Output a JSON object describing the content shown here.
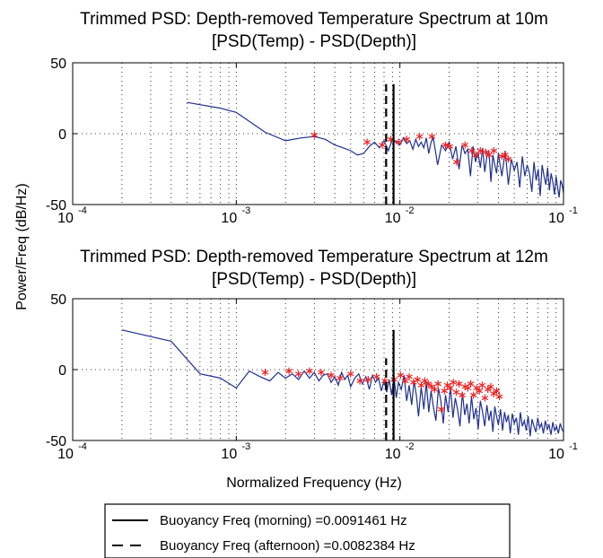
{
  "chart_data": [
    {
      "type": "line",
      "title": "Trimmed PSD: Depth-removed Temperature Spectrum at 10m",
      "subtitle": "[PSD(Temp) - PSD(Depth)]",
      "xscale": "log",
      "xlim": [
        0.0001,
        0.1
      ],
      "ylim": [
        -50,
        50
      ],
      "xticks": [
        "10",
        "10",
        "10",
        "10"
      ],
      "xtick_exponents": [
        "-4",
        "-3",
        "-2",
        "-1"
      ],
      "yticks": [
        "50",
        "0",
        "-50"
      ],
      "grid": true,
      "series": [
        {
          "color": "#1f2f8f",
          "x": [
            0.0005,
            0.0008,
            0.001,
            0.0015,
            0.002,
            0.0025,
            0.003,
            0.0035,
            0.004,
            0.0045,
            0.005,
            0.0055,
            0.006,
            0.0065,
            0.007,
            0.0075,
            0.008,
            0.0085,
            0.009,
            0.0095,
            0.01,
            0.0105,
            0.011,
            0.0115,
            0.012,
            0.0125,
            0.013,
            0.0135,
            0.014,
            0.0145,
            0.015,
            0.0155,
            0.016,
            0.017,
            0.018,
            0.019,
            0.02,
            0.021,
            0.022,
            0.023,
            0.024,
            0.025,
            0.026,
            0.027,
            0.028,
            0.029,
            0.03,
            0.031,
            0.032,
            0.033,
            0.034,
            0.035,
            0.036,
            0.037,
            0.038,
            0.039,
            0.04,
            0.042,
            0.044,
            0.046,
            0.048,
            0.05,
            0.052,
            0.054,
            0.056,
            0.058,
            0.06,
            0.062,
            0.064,
            0.066,
            0.068,
            0.07,
            0.072,
            0.074,
            0.076,
            0.078,
            0.08,
            0.082,
            0.084,
            0.086,
            0.088,
            0.09,
            0.092,
            0.094,
            0.096,
            0.098,
            0.1
          ],
          "y": [
            22,
            18,
            15,
            1,
            -5,
            -3,
            -2,
            -4,
            -8,
            -10,
            -12,
            -15,
            -14,
            -9,
            -6,
            -10,
            -5,
            -12,
            -4,
            -6,
            -8,
            -3,
            -7,
            -5,
            -11,
            -4,
            -9,
            -6,
            -10,
            -3,
            -14,
            -6,
            -3,
            -22,
            -8,
            -12,
            -6,
            -18,
            -9,
            -25,
            -8,
            -14,
            -11,
            -30,
            -9,
            -20,
            -13,
            -24,
            -10,
            -27,
            -16,
            -12,
            -34,
            -15,
            -22,
            -28,
            -14,
            -30,
            -12,
            -36,
            -18,
            -26,
            -20,
            -38,
            -16,
            -30,
            -22,
            -28,
            -41,
            -20,
            -33,
            -25,
            -44,
            -22,
            -30,
            -36,
            -24,
            -40,
            -28,
            -34,
            -43,
            -30,
            -38,
            -45,
            -33,
            -36,
            -42
          ]
        }
      ],
      "markers": {
        "color": "#ee2222",
        "x": [
          0.003,
          0.0063,
          0.0078,
          0.0088,
          0.0098,
          0.011,
          0.0132,
          0.0157,
          0.019,
          0.0202,
          0.0222,
          0.025,
          0.0275,
          0.0292,
          0.031,
          0.0335,
          0.035,
          0.0375,
          0.042,
          0.044,
          0.046
        ],
        "y": [
          -1,
          -6,
          -8,
          -4,
          -6,
          -4,
          -2,
          -2,
          -8,
          -9,
          -20,
          -8,
          -12,
          -15,
          -12,
          -13,
          -15,
          -12,
          -16,
          -15,
          -18
        ]
      },
      "vlines": [
        {
          "name": "Buoyancy Freq (morning) =0.0091461 Hz",
          "x": 0.0091461,
          "style": "solid",
          "ymax": 35
        },
        {
          "name": "Buoyancy Freq (afternoon) =0.0082384 Hz",
          "x": 0.0082384,
          "style": "dashed",
          "ymax": 35
        }
      ]
    },
    {
      "type": "line",
      "title": "Trimmed PSD: Depth-removed Temperature Spectrum at 12m",
      "subtitle": "[PSD(Temp) - PSD(Depth)]",
      "xlabel": "Normalized Frequency (Hz)",
      "xscale": "log",
      "xlim": [
        0.0001,
        0.1
      ],
      "ylim": [
        -50,
        50
      ],
      "xticks": [
        "10",
        "10",
        "10",
        "10"
      ],
      "xtick_exponents": [
        "-4",
        "-3",
        "-2",
        "-1"
      ],
      "yticks": [
        "50",
        "0",
        "-50"
      ],
      "grid": true,
      "series": [
        {
          "color": "#1f2f8f",
          "x": [
            0.0002,
            0.0004,
            0.0006,
            0.0008,
            0.001,
            0.0012,
            0.0014,
            0.0016,
            0.0018,
            0.002,
            0.0022,
            0.0024,
            0.0026,
            0.0028,
            0.003,
            0.0032,
            0.0034,
            0.0036,
            0.0038,
            0.004,
            0.0042,
            0.0044,
            0.0046,
            0.0048,
            0.005,
            0.0053,
            0.0056,
            0.0059,
            0.0062,
            0.0065,
            0.0068,
            0.0071,
            0.0074,
            0.0077,
            0.008,
            0.0083,
            0.0086,
            0.0089,
            0.0092,
            0.0095,
            0.0098,
            0.0102,
            0.0106,
            0.011,
            0.0114,
            0.0118,
            0.0122,
            0.0126,
            0.013,
            0.0135,
            0.014,
            0.0145,
            0.015,
            0.0155,
            0.016,
            0.0166,
            0.0172,
            0.0178,
            0.0184,
            0.019,
            0.0197,
            0.0204,
            0.0211,
            0.0218,
            0.0225,
            0.0233,
            0.0241,
            0.0249,
            0.0257,
            0.0265,
            0.0274,
            0.0283,
            0.0292,
            0.0301,
            0.031,
            0.032,
            0.033,
            0.034,
            0.035,
            0.036,
            0.037,
            0.038,
            0.039,
            0.04,
            0.0412,
            0.0424,
            0.0436,
            0.0448,
            0.046,
            0.0473,
            0.0486,
            0.05,
            0.0515,
            0.053,
            0.0545,
            0.056,
            0.0576,
            0.0592,
            0.0608,
            0.0625,
            0.0642,
            0.066,
            0.0678,
            0.0696,
            0.0715,
            0.0734,
            0.0754,
            0.0774,
            0.0795,
            0.0816,
            0.0838,
            0.086,
            0.0883,
            0.0906,
            0.093,
            0.0954,
            0.0978,
            0.1
          ],
          "y": [
            28,
            20,
            -3,
            -6,
            -13,
            -1,
            -5,
            -8,
            -2,
            -6,
            -3,
            -7,
            -1,
            -6,
            -2,
            -8,
            -4,
            -3,
            -9,
            -5,
            -11,
            -2,
            -7,
            -4,
            -12,
            -6,
            -3,
            -10,
            -5,
            -14,
            -4,
            -9,
            -6,
            -15,
            -8,
            -16,
            -7,
            -18,
            -5,
            -20,
            -9,
            -14,
            -4,
            -22,
            -11,
            -25,
            -8,
            -18,
            -33,
            -12,
            -28,
            -9,
            -30,
            -15,
            -26,
            -36,
            -13,
            -22,
            -38,
            -18,
            -30,
            -12,
            -34,
            -20,
            -28,
            -40,
            -16,
            -32,
            -24,
            -38,
            -19,
            -35,
            -27,
            -42,
            -22,
            -30,
            -40,
            -25,
            -36,
            -29,
            -44,
            -26,
            -33,
            -39,
            -28,
            -43,
            -30,
            -37,
            -32,
            -45,
            -31,
            -38,
            -34,
            -46,
            -30,
            -40,
            -36,
            -43,
            -33,
            -47,
            -35,
            -40,
            -44,
            -34,
            -41,
            -38,
            -45,
            -36,
            -42,
            -39,
            -46,
            -37,
            -43,
            -40,
            -45,
            -38,
            -42,
            -44
          ]
        }
      ],
      "markers": {
        "color": "#ee2222",
        "x": [
          0.0015,
          0.0021,
          0.0024,
          0.0028,
          0.0033,
          0.0038,
          0.0043,
          0.005,
          0.0057,
          0.0064,
          0.0072,
          0.0081,
          0.0092,
          0.0101,
          0.0108,
          0.0114,
          0.0121,
          0.0128,
          0.0135,
          0.0142,
          0.0149,
          0.0156,
          0.0163,
          0.0171,
          0.0179,
          0.0187,
          0.0195,
          0.0203,
          0.0212,
          0.0221,
          0.023,
          0.024,
          0.025,
          0.026,
          0.0271,
          0.0282,
          0.0294,
          0.0306,
          0.0318,
          0.0331,
          0.0345,
          0.0359,
          0.0374,
          0.039,
          0.0406
        ],
        "y": [
          -2,
          -1,
          -3,
          -1,
          -2,
          -4,
          -6,
          -3,
          -8,
          -7,
          -5,
          -8,
          -7,
          -4,
          -8,
          -5,
          -9,
          -7,
          -11,
          -8,
          -10,
          -12,
          -14,
          -10,
          -28,
          -15,
          -11,
          -13,
          -9,
          -16,
          -10,
          -18,
          -12,
          -13,
          -10,
          -18,
          -13,
          -15,
          -11,
          -20,
          -14,
          -12,
          -17,
          -15,
          -19
        ]
      },
      "vlines": [
        {
          "name": "Buoyancy Freq (morning) =0.0091461 Hz",
          "x": 0.0091461,
          "style": "solid",
          "ymax": 28
        },
        {
          "name": "Buoyancy Freq (afternoon) =0.0082384 Hz",
          "x": 0.0082384,
          "style": "dashed",
          "ymax": 8
        }
      ]
    }
  ],
  "shared": {
    "ylabel": "Power/Freq (dB/Hz)"
  },
  "legend": {
    "placement": "bottom",
    "entries": [
      {
        "label": "Buoyancy Freq (morning) =0.0091461 Hz",
        "style": "solid"
      },
      {
        "label": "Buoyancy Freq (afternoon) =0.0082384 Hz",
        "style": "dashed"
      }
    ]
  }
}
